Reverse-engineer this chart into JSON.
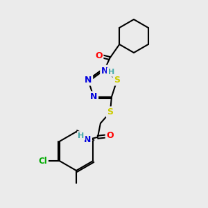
{
  "background_color": "#ebebeb",
  "bond_color": "#000000",
  "atom_colors": {
    "N": "#0000dd",
    "O": "#ff0000",
    "S": "#cccc00",
    "Cl": "#00aa00",
    "H": "#44aaaa",
    "C": "#000000"
  },
  "figsize": [
    3.0,
    3.0
  ],
  "dpi": 100
}
